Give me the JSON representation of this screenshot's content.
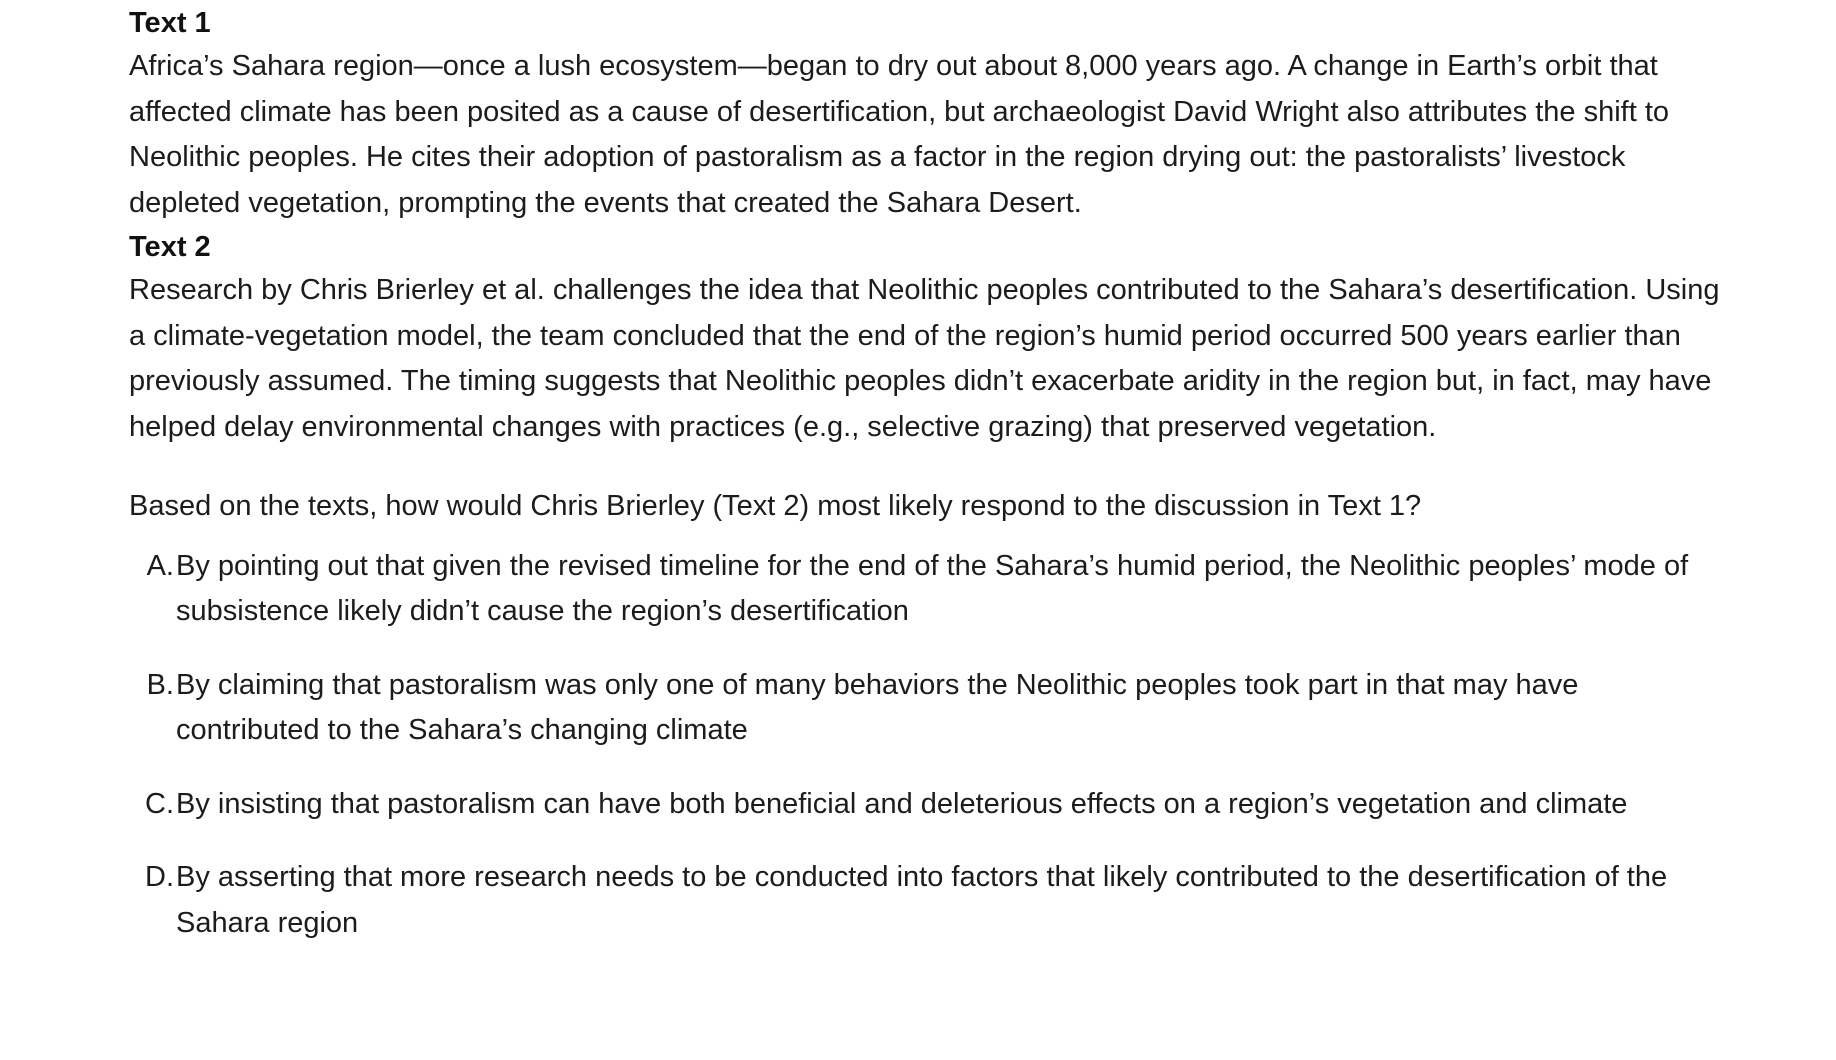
{
  "text1": {
    "heading": "Text 1",
    "body": "Africa’s Sahara region—once a lush ecosystem—began to dry out about 8,000 years ago. A change in Earth’s orbit that affected climate has been posited as a cause of desertification, but archaeologist David Wright also attributes the shift to Neolithic peoples. He cites their adoption of pastoralism as a factor in the region drying out: the pastoralists’ livestock depleted vegetation, prompting the events that created the Sahara Desert."
  },
  "text2": {
    "heading": "Text 2",
    "body": "Research by Chris Brierley et al. challenges the idea that Neolithic peoples contributed to the Sahara’s desertification. Using a climate-vegetation model, the team concluded that the end of the region’s humid period occurred 500 years earlier than previously assumed. The timing suggests that Neolithic peoples didn’t exacerbate aridity in the region but, in fact, may have helped delay environmental changes with practices (e.g., selective grazing) that preserved vegetation."
  },
  "question": "Based on the texts, how would Chris Brierley (Text 2) most likely respond to the discussion in Text 1?",
  "choices": [
    {
      "letter": "A.",
      "text": "By pointing out that given the revised timeline for the end of the Sahara’s humid period, the Neolithic peoples’ mode of subsistence likely didn’t cause the region’s desertification"
    },
    {
      "letter": "B.",
      "text": "By claiming that pastoralism was only one of many behaviors the Neolithic peoples took part in that may have contributed to the Sahara’s changing climate"
    },
    {
      "letter": "C.",
      "text": "By insisting that pastoralism can have both beneficial and deleterious effects on a region’s vegetation and climate"
    },
    {
      "letter": "D.",
      "text": "By asserting that more research needs to be conducted into factors that likely contributed to the desertification of the Sahara region"
    }
  ]
}
